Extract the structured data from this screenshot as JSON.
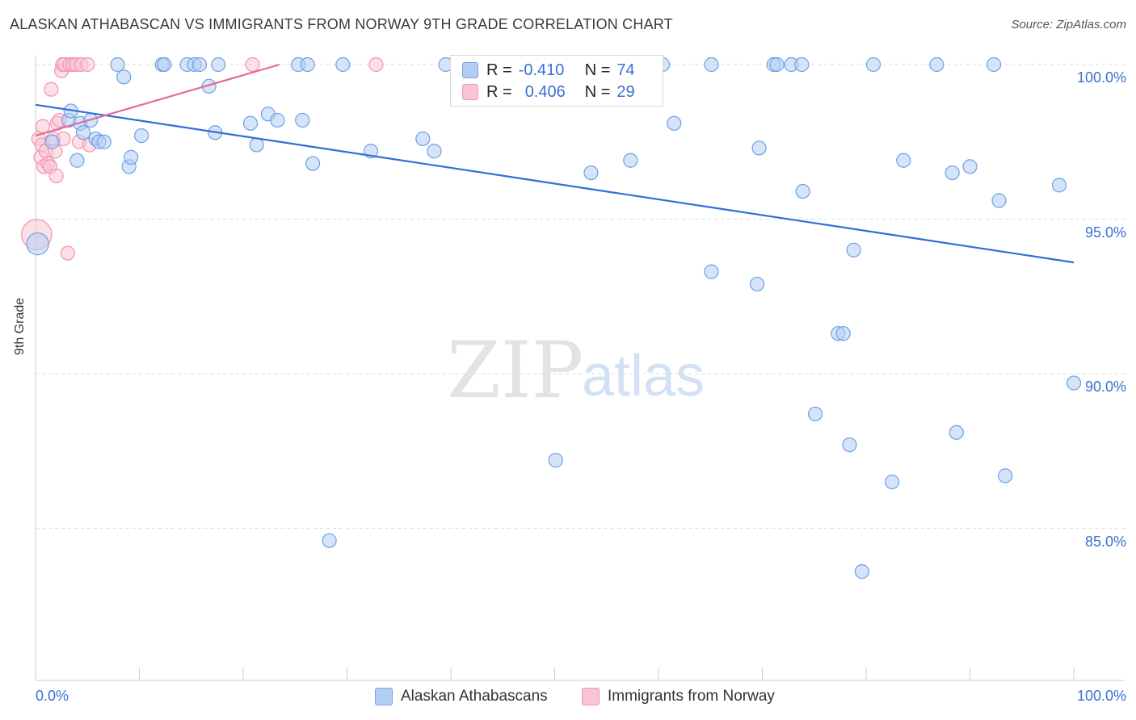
{
  "title": "ALASKAN ATHABASCAN VS IMMIGRANTS FROM NORWAY 9TH GRADE CORRELATION CHART",
  "source": "Source: ZipAtlas.com",
  "watermark": {
    "zip": "ZIP",
    "atlas": "atlas"
  },
  "legend": {
    "r_label": "R =",
    "n_label": "N =",
    "blue": {
      "r": "-0.410",
      "n": "74"
    },
    "pink": {
      "r": "0.406",
      "n": "29"
    }
  },
  "chart_data": {
    "type": "scatter",
    "title": "ALASKAN ATHABASCAN VS IMMIGRANTS FROM NORWAY 9TH GRADE CORRELATION CHART",
    "xlabel": "",
    "ylabel": "9th Grade",
    "xlim": [
      0,
      100
    ],
    "ylim": [
      80.5,
      100.8
    ],
    "x_tick_labels": [
      "0.0%",
      "100.0%"
    ],
    "y_ticks": [
      {
        "value": 100,
        "label": "100.0%"
      },
      {
        "value": 95,
        "label": "95.0%"
      },
      {
        "value": 90,
        "label": "90.0%"
      },
      {
        "value": 85,
        "label": "85.0%"
      }
    ],
    "grid": "horizontal dashed",
    "legend_position": "top-center",
    "series": [
      {
        "name": "Alaskan Athabascans",
        "color": "#6e9fe6",
        "fill": "#b3cdf2",
        "r": -0.41,
        "n": 74,
        "trend": {
          "x": [
            0,
            100
          ],
          "y": [
            98.7,
            93.6
          ]
        },
        "points": [
          [
            0.2,
            94.2,
            1.6
          ],
          [
            1.6,
            97.5,
            1
          ],
          [
            3.2,
            98.2,
            1
          ],
          [
            4.0,
            96.9,
            1
          ],
          [
            4.3,
            98.1,
            1
          ],
          [
            3.4,
            98.5,
            1
          ],
          [
            4.6,
            97.8,
            1
          ],
          [
            5.3,
            98.2,
            1
          ],
          [
            5.8,
            97.6,
            1
          ],
          [
            6.1,
            97.5,
            1
          ],
          [
            6.6,
            97.5,
            1
          ],
          [
            7.9,
            100.0,
            1
          ],
          [
            8.5,
            99.6,
            1
          ],
          [
            9.0,
            96.7,
            1
          ],
          [
            9.2,
            97.0,
            1
          ],
          [
            10.2,
            97.7,
            1
          ],
          [
            12.2,
            100.0,
            1
          ],
          [
            12.4,
            100.0,
            1
          ],
          [
            14.6,
            100.0,
            1
          ],
          [
            15.3,
            100.0,
            1
          ],
          [
            15.8,
            100.0,
            1
          ],
          [
            16.7,
            99.3,
            1
          ],
          [
            17.3,
            97.8,
            1
          ],
          [
            17.6,
            100.0,
            1
          ],
          [
            20.7,
            98.1,
            1
          ],
          [
            21.3,
            97.4,
            1
          ],
          [
            22.4,
            98.4,
            1
          ],
          [
            23.3,
            98.2,
            1
          ],
          [
            25.3,
            100.0,
            1
          ],
          [
            26.2,
            100.0,
            1
          ],
          [
            25.7,
            98.2,
            1
          ],
          [
            26.7,
            96.8,
            1
          ],
          [
            28.3,
            84.6,
            1
          ],
          [
            29.6,
            100.0,
            1
          ],
          [
            32.3,
            97.2,
            1
          ],
          [
            37.3,
            97.6,
            1
          ],
          [
            38.4,
            97.2,
            1
          ],
          [
            39.5,
            100.0,
            1
          ],
          [
            41.2,
            100.0,
            1
          ],
          [
            50.1,
            87.2,
            1
          ],
          [
            53.5,
            96.5,
            1
          ],
          [
            57.3,
            96.9,
            1
          ],
          [
            60.4,
            100.0,
            1
          ],
          [
            61.5,
            98.1,
            1
          ],
          [
            65.1,
            100.0,
            1
          ],
          [
            65.1,
            93.3,
            1
          ],
          [
            69.5,
            92.9,
            1
          ],
          [
            69.7,
            97.3,
            1
          ],
          [
            71.1,
            100.0,
            1
          ],
          [
            71.4,
            100.0,
            1
          ],
          [
            72.8,
            100.0,
            1
          ],
          [
            73.8,
            100.0,
            1
          ],
          [
            73.9,
            95.9,
            1
          ],
          [
            75.1,
            88.7,
            1
          ],
          [
            77.3,
            91.3,
            1
          ],
          [
            77.8,
            91.3,
            1
          ],
          [
            78.4,
            87.7,
            1
          ],
          [
            78.8,
            94.0,
            1
          ],
          [
            79.6,
            83.6,
            1
          ],
          [
            80.7,
            100.0,
            1
          ],
          [
            82.5,
            86.5,
            1
          ],
          [
            83.6,
            96.9,
            1
          ],
          [
            86.8,
            100.0,
            1
          ],
          [
            88.3,
            96.5,
            1
          ],
          [
            88.7,
            88.1,
            1
          ],
          [
            90.0,
            96.7,
            1
          ],
          [
            92.3,
            100.0,
            1
          ],
          [
            92.8,
            95.6,
            1
          ],
          [
            93.4,
            86.7,
            1
          ],
          [
            98.6,
            96.1,
            1
          ],
          [
            100.0,
            89.7,
            1
          ]
        ]
      },
      {
        "name": "Immigrants from Norway",
        "color": "#ee94b0",
        "fill": "#f9c5d4",
        "r": 0.406,
        "n": 29,
        "trend": {
          "x": [
            0,
            23.5
          ],
          "y": [
            97.7,
            100.0
          ]
        },
        "points": [
          [
            0.1,
            94.5,
            2.2
          ],
          [
            0.3,
            97.6,
            1
          ],
          [
            0.5,
            97.0,
            1
          ],
          [
            0.6,
            97.4,
            1
          ],
          [
            0.7,
            98.0,
            1
          ],
          [
            0.8,
            96.7,
            1
          ],
          [
            1.0,
            97.2,
            1
          ],
          [
            1.2,
            96.8,
            1
          ],
          [
            1.4,
            96.7,
            1
          ],
          [
            1.5,
            99.2,
            1
          ],
          [
            1.7,
            97.6,
            1
          ],
          [
            1.9,
            97.2,
            1
          ],
          [
            2.0,
            96.4,
            1
          ],
          [
            2.1,
            98.1,
            1
          ],
          [
            2.3,
            98.2,
            1
          ],
          [
            2.5,
            99.8,
            1
          ],
          [
            2.6,
            100.0,
            1
          ],
          [
            2.7,
            97.6,
            1
          ],
          [
            2.8,
            100.0,
            1
          ],
          [
            3.1,
            93.9,
            1
          ],
          [
            3.3,
            100.0,
            1
          ],
          [
            3.6,
            100.0,
            1
          ],
          [
            3.9,
            100.0,
            1
          ],
          [
            4.2,
            97.5,
            1
          ],
          [
            4.4,
            100.0,
            1
          ],
          [
            5.0,
            100.0,
            1
          ],
          [
            5.2,
            97.4,
            1
          ],
          [
            20.9,
            100.0,
            1
          ],
          [
            32.8,
            100.0,
            1
          ]
        ]
      }
    ]
  }
}
